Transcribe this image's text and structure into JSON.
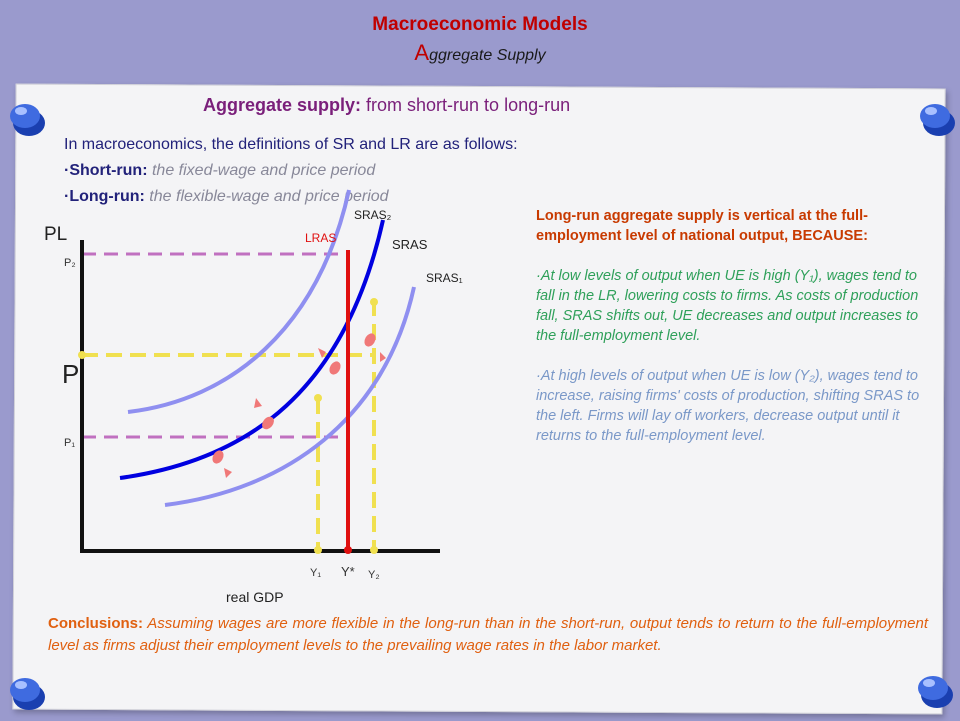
{
  "header": {
    "title": "Macroeconomic Models",
    "subtitle_cap": "A",
    "subtitle_rest": "ggregate Supply"
  },
  "section": {
    "title_bold": "Aggregate supply:",
    "title_rest": " from short-run to long-run"
  },
  "intro": {
    "line1": "In macroeconomics, the definitions of SR and LR are as follows:",
    "sr_label": "·Short-run:",
    "sr_text": " the fixed-wage and price period",
    "lr_label": "·Long-run:",
    "lr_text": " the flexible-wage and price period"
  },
  "chart_data": {
    "type": "diagram",
    "y_axis_label": "PL",
    "x_axis_label": "real GDP",
    "y_ticks": [
      "P₂",
      "P",
      "P₁"
    ],
    "x_ticks": [
      "Y₁",
      "Y*",
      "Y₂"
    ],
    "curves": [
      "SRAS₂",
      "SRAS",
      "SRAS₁",
      "LRAS"
    ],
    "colors": {
      "sras": "#0000e0",
      "sras_shift": "#8f8ff0",
      "lras": "#e01010",
      "guide_purple": "#c070c0",
      "guide_yellow": "#f0e050",
      "arrows": "#f07878"
    }
  },
  "right_text": {
    "heading": "Long-run aggregate supply is vertical at the full-employment level of national output, BECAUSE:",
    "p1": "·At low levels of output when UE is high (Y₁), wages tend to fall in the LR, lowering costs to firms. As costs of production fall, SRAS shifts out, UE decreases and output increases to the full-employment level.",
    "p2": "·At high levels of output when UE is low (Y₂), wages tend to increase, raising firms' costs of production, shifting SRAS to the left. Firms will lay off workers, decrease output until it returns to the full-employment level."
  },
  "conclusion": {
    "label": "Conclusions:",
    "text": " Assuming wages are more flexible in the long-run than in the short-run, output tends to return to the full-employment level as firms adjust their employment levels to the prevailing wage rates in the labor market."
  }
}
